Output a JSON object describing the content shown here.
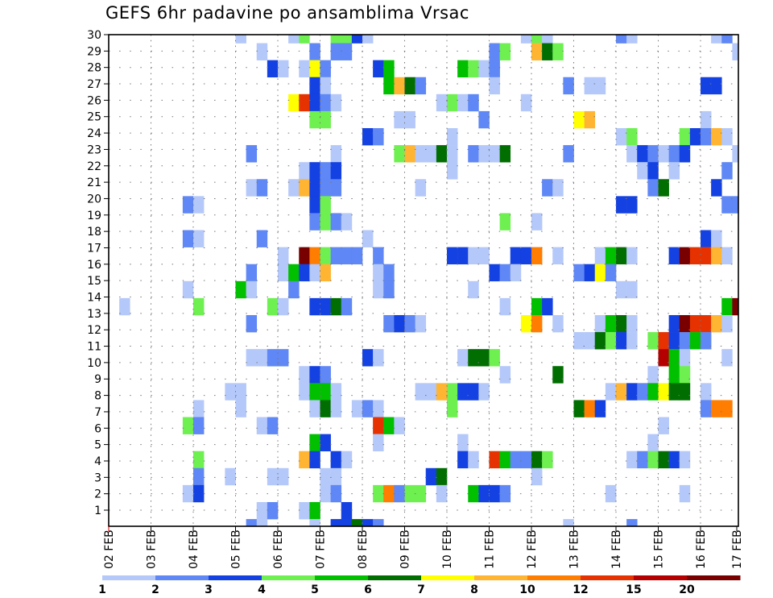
{
  "chart_data": {
    "type": "heatmap",
    "title": "GEFS 6hr padavine po ansamblima Vrsac",
    "xlabel": "",
    "ylabel": "",
    "x_tick_labels": [
      "02 FEB",
      "03 FEB",
      "04 FEB",
      "05 FEB",
      "06 FEB",
      "07 FEB",
      "08 FEB",
      "09 FEB",
      "10 FEB",
      "11 FEB",
      "12 FEB",
      "13 FEB",
      "14 FEB",
      "15 FEB",
      "16 FEB",
      "17 FEB"
    ],
    "y_tick_labels": [
      "1",
      "2",
      "3",
      "4",
      "5",
      "6",
      "7",
      "8",
      "9",
      "10",
      "11",
      "12",
      "13",
      "14",
      "15",
      "16",
      "17",
      "18",
      "19",
      "20",
      "21",
      "22",
      "23",
      "24",
      "25",
      "26",
      "27",
      "28",
      "29",
      "30"
    ],
    "time_step_hours": 6,
    "grid": true,
    "colorbar": {
      "placement": "bottom",
      "labels": [
        "1",
        "2",
        "3",
        "4",
        "5",
        "6",
        "7",
        "8",
        "10",
        "12",
        "15",
        "20"
      ],
      "colors": [
        "#b4c8fa",
        "#5f87f5",
        "#1441e1",
        "#6ef050",
        "#00c000",
        "#006e00",
        "#ffff00",
        "#ffb432",
        "#ff7d00",
        "#e63200",
        "#b40000",
        "#780000"
      ]
    },
    "cell_code_note": "rows top-to-bottom, one char per 6h step; '.'=none, 1-9,a,b,c = colorbar bin index 1..12",
    "rows": [
      "............1....14..4431..............141......21.......12.",
      "..............1....2.22.............24..864................172",
      "...............31.172....35......5412.......................",
      "...................31.....5862......1......2.11.........33...",
      ".................7a321.........1412....1....................",
      "...................44......11......2........78..........1.",
      "........................32......1...............14....43281.",
      ".............2.......1.....481161.2116.....2.....132123....1",
      "..................1323..........1.................13.1....2.",
      ".............12..18322.......1...........21........26....3..3",
      ".......21..........34...........................33........22",
      "...................2421..............4..1...................",
      ".......21.....2.........1...............................31..",
      "................1.c94222.2......3311..339.1...1561...3caa81.",
      ".............2..15318....12.........321.....2372.............",
      ".......1....51...2.......12.......1.............11..........",
      ".1......4......41..3362..............1..53................5c",
      ".............2............2321.........79.1...1561...3caa81.",
      "............................................116431.4a3252...",
      ".............1122.......31.......1664...............b51...1.",
      "..................132................1....6........1.54.....",
      "...........11.....1551.......1184331...........18325766 1.....",
      "........1...1......161.121......4...........693.........299.",
      ".......42.....12.........a51........................1.......",
      "...................53....1.......1.................1........",
      "........4.........83.31..........31.a52264.......124631.....",
      "........2..1...11...11........36........1...................",
      ".......13...........12...49244 1..5332.........1......1......5",
      "..............12..15..3.....................................",
      ".............21....1.33632.................1.....2..........."
    ]
  }
}
